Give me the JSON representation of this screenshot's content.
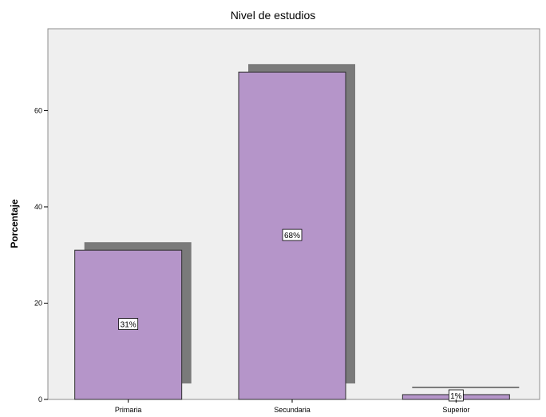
{
  "chart_data": {
    "type": "bar",
    "title": "Nivel de estudios",
    "xlabel": "",
    "ylabel": "Porcentaje",
    "categories": [
      "Primaria",
      "Secundaria",
      "Superior"
    ],
    "values": [
      31,
      68,
      1
    ],
    "data_labels": [
      "31%",
      "68%",
      "1%"
    ],
    "yticks": [
      "0",
      "20",
      "40",
      "60"
    ],
    "ylim": [
      0,
      77
    ],
    "grid": false,
    "legend": "none",
    "bar_style": "3d-shadow"
  },
  "colors": {
    "bar_fill": "#b595c9",
    "bar_stroke": "#2e2e2e",
    "shadow": "#7a7a7a",
    "plot_background": "#efefef",
    "plot_border": "#8c8c8c"
  }
}
